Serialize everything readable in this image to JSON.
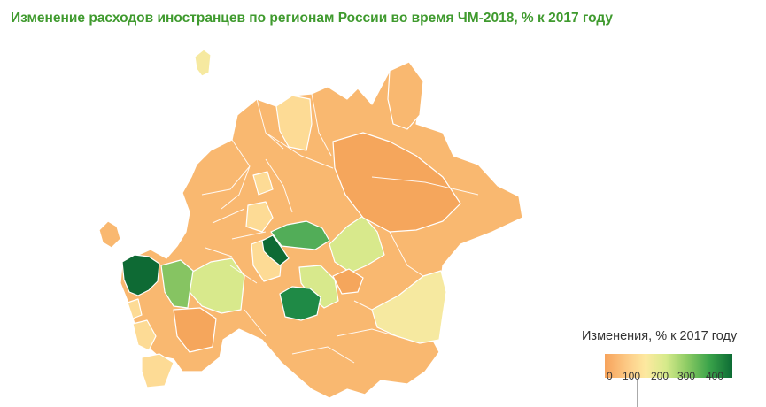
{
  "title": "Изменение расходов иностранцев по регионам России во время ЧМ-2018, % к 2017 году",
  "legend": {
    "title": "Изменения, %  к 2017 году",
    "ticks": [
      "0",
      "100",
      "200",
      "300",
      "400"
    ],
    "scale_colors": [
      "#f7a35c",
      "#fdd08c",
      "#fde9a0",
      "#d6ea8b",
      "#8fcc65",
      "#3aa34a",
      "#0c6b34"
    ]
  },
  "colors": {
    "title": "#3f9a2e",
    "base_region": "#f9b870",
    "light_region": "#fddb95",
    "pale_region": "#f6e9a0",
    "light_green_region": "#d8e98c",
    "mid_green_region": "#86c462",
    "green_region": "#52ad58",
    "dark_green_region": "#1f8a46",
    "darkest_green_region": "#0e6a34",
    "border": "#ffffff"
  }
}
